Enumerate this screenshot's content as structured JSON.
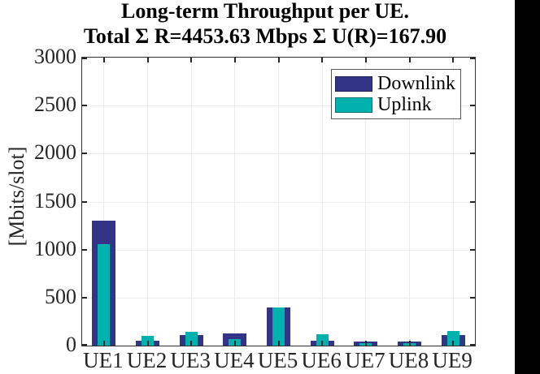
{
  "title": {
    "line1": "Long-term Throughput per UE.",
    "line2": "Total Σ R=4453.63 Mbps Σ U(R)=167.90"
  },
  "y_axis_label": "[Mbits/slot]",
  "legend": [
    {
      "label": "Downlink",
      "color": "#333488"
    },
    {
      "label": "Uplink",
      "color": "#00B1AE"
    }
  ],
  "colors": {
    "downlink": "#333488",
    "uplink": "#00B1AE",
    "axis": "#333333",
    "tick_text": "#262626",
    "grid": "#EBEBEB",
    "right_bar": "#000000"
  },
  "chart_data": {
    "type": "bar",
    "title": "Long-term Throughput per UE.",
    "subtitle": "Total Σ R=4453.63 Mbps Σ U(R)=167.90",
    "categories": [
      "UE1",
      "UE2",
      "UE3",
      "UE4",
      "UE5",
      "UE6",
      "UE7",
      "UE8",
      "UE9"
    ],
    "series": [
      {
        "name": "Downlink",
        "color": "#333488",
        "values": [
          1300,
          55,
          110,
          130,
          400,
          55,
          42,
          42,
          113
        ]
      },
      {
        "name": "Uplink",
        "color": "#00B1AE",
        "values": [
          1055,
          105,
          145,
          65,
          400,
          115,
          25,
          25,
          150
        ]
      }
    ],
    "xlabel": "",
    "ylabel": "[Mbits/slot]",
    "ylim": [
      0,
      3000
    ],
    "yticks": [
      0,
      500,
      1000,
      1500,
      2000,
      2500,
      3000
    ],
    "grid": true,
    "legend_position": "top-right",
    "bar_style": "overlaid"
  }
}
